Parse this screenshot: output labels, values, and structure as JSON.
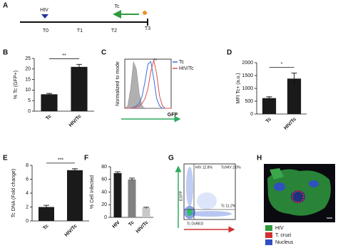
{
  "panel_labels": [
    "A",
    "B",
    "C",
    "D",
    "E",
    "F",
    "G",
    "H"
  ],
  "timeline": {
    "infections": [
      "HIV",
      "Tc"
    ],
    "timepoints": [
      "T0",
      "T1",
      "T2",
      "T3"
    ]
  },
  "chart_data": [
    {
      "type": "bar",
      "ylabel": "% Tc (GFP+)",
      "categories": [
        "Tc",
        "HIV/Tc"
      ],
      "values": [
        8,
        21
      ],
      "errors": [
        0.4,
        1.2
      ],
      "color": "#1a1a1a",
      "ylim": [
        0,
        25
      ],
      "yticks": [
        0,
        5,
        10,
        15,
        20,
        25
      ],
      "annotation": "**"
    },
    {
      "type": "line",
      "ylabel": "Normalized to mode",
      "xlabel": "GFP",
      "annotation": "**",
      "xlim": [
        0,
        4
      ],
      "ylim": [
        0,
        100
      ],
      "x": [
        0,
        0.25,
        0.5,
        0.75,
        1,
        1.25,
        1.5,
        1.75,
        2,
        2.25,
        2.5,
        2.75,
        3,
        3.25,
        3.5,
        3.75,
        4
      ],
      "series": [
        {
          "color": "#b0b0b0",
          "values": [
            0,
            5,
            40,
            95,
            80,
            30,
            5,
            0,
            0,
            0,
            0,
            0,
            0,
            0,
            0,
            0,
            0
          ]
        },
        {
          "name": "Tc",
          "color": "#3a6fd8",
          "values": [
            0,
            0,
            0,
            2,
            5,
            10,
            25,
            55,
            90,
            95,
            60,
            20,
            5,
            0,
            0,
            0,
            0
          ]
        },
        {
          "name": "HIV/Tc",
          "color": "#e05050",
          "values": [
            0,
            0,
            0,
            0,
            2,
            5,
            10,
            20,
            40,
            75,
            98,
            70,
            25,
            5,
            0,
            0,
            0
          ]
        }
      ]
    },
    {
      "type": "bar",
      "ylabel": "MFI Tc+ (a.u.)",
      "categories": [
        "Tc",
        "HIV/Tc"
      ],
      "values": [
        620,
        1380
      ],
      "errors": [
        50,
        220
      ],
      "color": "#1a1a1a",
      "ylim": [
        0,
        2000
      ],
      "yticks": [
        0,
        500,
        1000,
        1500,
        2000
      ],
      "annotation": "*"
    },
    {
      "type": "bar",
      "ylabel": "Tc DNA (Fold change)",
      "categories": [
        "Tc",
        "HIV/Tc"
      ],
      "values": [
        2,
        7.3
      ],
      "errors": [
        0.25,
        0.2
      ],
      "color": "#1a1a1a",
      "ylim": [
        0,
        8
      ],
      "yticks": [
        0,
        2,
        4,
        6,
        8
      ],
      "annotation": "***"
    },
    {
      "type": "bar",
      "ylabel": "% Cell Infected",
      "categories": [
        "HIV",
        "Tc",
        "HIV/Tc"
      ],
      "values": [
        70,
        60,
        15
      ],
      "errors": [
        2,
        2,
        1
      ],
      "colors": [
        "#1a1a1a",
        "#808080",
        "#c8c8c8"
      ],
      "ylim": [
        0,
        80
      ],
      "yticks": [
        0,
        20,
        40,
        60,
        80
      ]
    }
  ],
  "flow_plot": {
    "xlabel": "Tc DsRED",
    "ylabel": "EGFP",
    "quadrant_labels": [
      "HIV 12.8%",
      "Tc/HIV 2.0%",
      "Tc 11.2%"
    ]
  },
  "image_legend": [
    {
      "label": "HIV",
      "color": "#2f9a3e"
    },
    {
      "label": "T. cruzi",
      "color": "#d03030"
    },
    {
      "label": "Nucleus",
      "color": "#3050c0"
    }
  ]
}
